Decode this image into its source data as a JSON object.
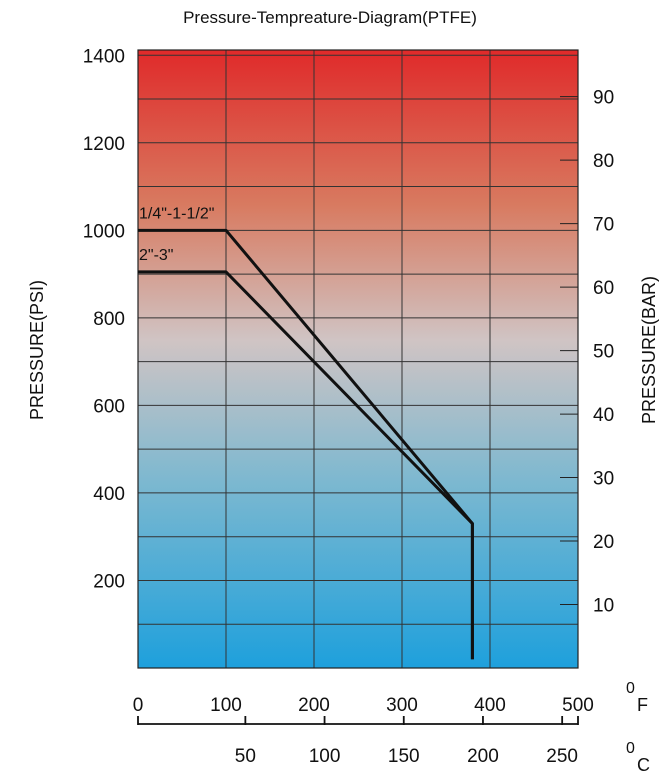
{
  "chart_data": {
    "type": "line",
    "title": "Pressure-Tempreature-Diagram(PTFE)",
    "ylabel": "PRESSURE(PSI)",
    "ylabel_right": "PRESSURE(BAR)",
    "xunit_f": "F",
    "xunit_c": "C",
    "degree_mark": "0",
    "ylim": [
      0,
      1400
    ],
    "xlim_f": [
      0,
      500
    ],
    "xlim_c": [
      0,
      250
    ],
    "y_ticks": [
      "200",
      "400",
      "600",
      "800",
      "1000",
      "1200",
      "1400"
    ],
    "y_tick_values": [
      200,
      400,
      600,
      800,
      1000,
      1200,
      1400
    ],
    "y_right_ticks": [
      "10",
      "20",
      "30",
      "40",
      "50",
      "60",
      "70",
      "80",
      "90"
    ],
    "y_right_tick_values": [
      10,
      20,
      30,
      40,
      50,
      60,
      70,
      80,
      90
    ],
    "x_ticks_f": [
      "0",
      "100",
      "200",
      "300",
      "400",
      "500"
    ],
    "x_tick_values_f": [
      0,
      100,
      200,
      300,
      400,
      500
    ],
    "x_ticks_c": [
      "50",
      "100",
      "150",
      "200",
      "250"
    ],
    "x_tick_values_c": [
      50,
      100,
      150,
      200,
      250
    ],
    "grid": true,
    "background_gradient": [
      "#e02a2a",
      "#d87a60",
      "#d0c4c4",
      "#7cb8d0",
      "#1ea0dc"
    ],
    "line_color": "#111111",
    "series": [
      {
        "name": "1/4\"-1-1/2\"",
        "x_f": [
          0,
          100,
          380,
          380
        ],
        "y": [
          1000,
          1000,
          330,
          20
        ]
      },
      {
        "name": "2\"-3\"",
        "x_f": [
          0,
          100,
          380,
          380
        ],
        "y": [
          905,
          905,
          330,
          20
        ]
      }
    ]
  }
}
